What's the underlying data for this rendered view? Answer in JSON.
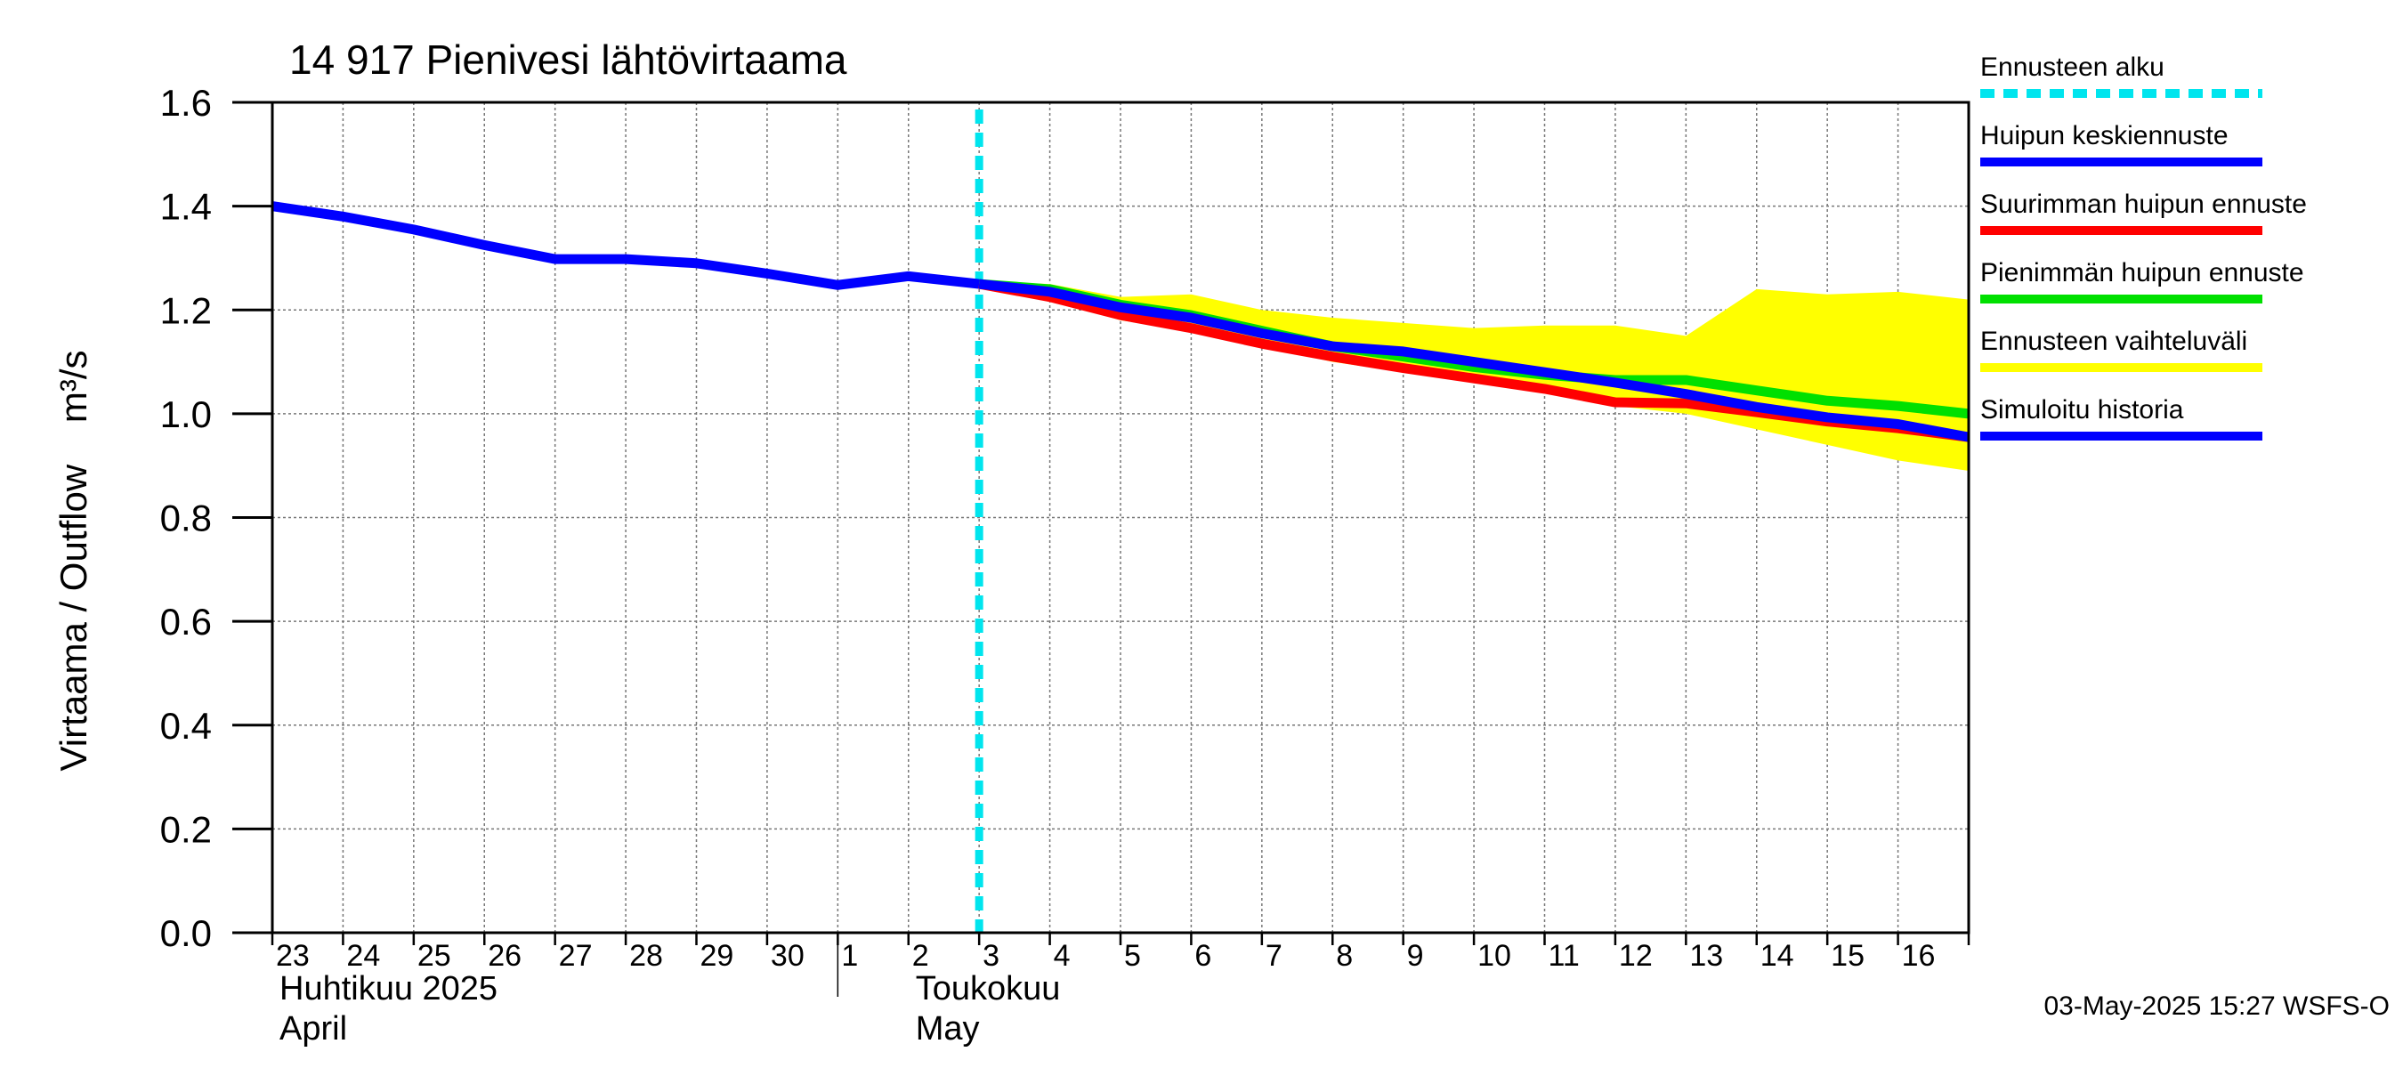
{
  "chart_data": {
    "type": "line",
    "title": "14 917 Pienivesi lähtövirtaama",
    "ylabel": "Virtaama / Outflow    m³/s",
    "ylim": [
      0.0,
      1.6
    ],
    "yticks": [
      "0.0",
      "0.2",
      "0.4",
      "0.6",
      "0.8",
      "1.0",
      "1.2",
      "1.4",
      "1.6"
    ],
    "x_day_range": [
      0,
      24
    ],
    "x_tick_labels": [
      "23",
      "24",
      "25",
      "26",
      "27",
      "28",
      "29",
      "30",
      "1",
      "2",
      "3",
      "4",
      "5",
      "6",
      "7",
      "8",
      "9",
      "10",
      "11",
      "12",
      "13",
      "14",
      "15",
      "16"
    ],
    "month_labels": [
      {
        "line1": "Huhtikuu  2025",
        "line2": "April",
        "day": 0
      },
      {
        "line1": "Toukokuu",
        "line2": "May",
        "day": 9
      }
    ],
    "month_divider_day": 8,
    "forecast_start_day": 10.0,
    "grid": true,
    "series": [
      {
        "name": "Ennusteen vaihteluväli",
        "kind": "band",
        "color": "#ffff00",
        "x": [
          10.0,
          11,
          12,
          13,
          14,
          15,
          16,
          17,
          18,
          19,
          20,
          21,
          22,
          23,
          24
        ],
        "upper": [
          1.255,
          1.25,
          1.225,
          1.23,
          1.2,
          1.185,
          1.175,
          1.165,
          1.17,
          1.17,
          1.15,
          1.24,
          1.23,
          1.235,
          1.22
        ],
        "lower": [
          1.25,
          1.22,
          1.18,
          1.16,
          1.13,
          1.1,
          1.08,
          1.06,
          1.04,
          1.015,
          1.0,
          0.97,
          0.94,
          0.91,
          0.89
        ]
      },
      {
        "name": "Simuloitu historia",
        "color": "#0000ff",
        "x": [
          0,
          1,
          2,
          3,
          4,
          5,
          6,
          7,
          8,
          9,
          10.0
        ],
        "y": [
          1.4,
          1.38,
          1.355,
          1.325,
          1.298,
          1.298,
          1.29,
          1.27,
          1.248,
          1.265,
          1.25
        ]
      },
      {
        "name": "Pienimmän huipun ennuste",
        "color": "#00e000",
        "x": [
          10.0,
          11,
          12,
          13,
          14,
          15,
          16,
          17,
          18,
          19,
          20,
          21,
          22,
          23,
          24
        ],
        "y": [
          1.25,
          1.24,
          1.21,
          1.19,
          1.16,
          1.13,
          1.11,
          1.09,
          1.075,
          1.065,
          1.065,
          1.045,
          1.025,
          1.015,
          1.0
        ]
      },
      {
        "name": "Suurimman huipun ennuste",
        "color": "#ff0000",
        "x": [
          10.0,
          11,
          12,
          13,
          14,
          15,
          16,
          17,
          18,
          19,
          20,
          21,
          22,
          23,
          24
        ],
        "y": [
          1.25,
          1.225,
          1.19,
          1.165,
          1.135,
          1.11,
          1.088,
          1.068,
          1.048,
          1.022,
          1.02,
          1.003,
          0.985,
          0.972,
          0.955
        ]
      },
      {
        "name": "Huipun keskiennuste",
        "color": "#0000ff",
        "x": [
          10.0,
          11,
          12,
          13,
          14,
          15,
          16,
          17,
          18,
          19,
          20,
          21,
          22,
          23,
          24
        ],
        "y": [
          1.25,
          1.235,
          1.205,
          1.185,
          1.155,
          1.13,
          1.12,
          1.1,
          1.08,
          1.06,
          1.038,
          1.013,
          0.993,
          0.98,
          0.955
        ]
      }
    ],
    "legend": {
      "placement": "right",
      "entries": [
        {
          "label": "Ennusteen alku",
          "color": "#00e5ee",
          "style": "dashed"
        },
        {
          "label": "Huipun keskiennuste",
          "color": "#0000ff",
          "style": "solid"
        },
        {
          "label": "Suurimman huipun ennuste",
          "color": "#ff0000",
          "style": "solid"
        },
        {
          "label": "Pienimmän huipun ennuste",
          "color": "#00e000",
          "style": "solid"
        },
        {
          "label": "Ennusteen vaihteluväli",
          "color": "#ffff00",
          "style": "solid"
        },
        {
          "label": "Simuloitu historia",
          "color": "#0000ff",
          "style": "solid"
        }
      ]
    },
    "footer": "03-May-2025 15:27 WSFS-O"
  }
}
